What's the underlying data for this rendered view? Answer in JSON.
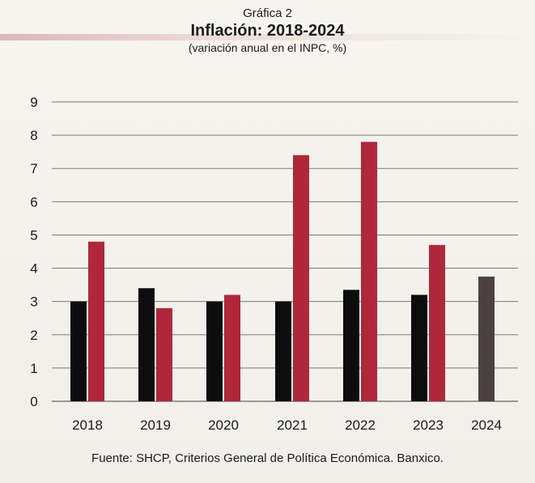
{
  "kicker": "Gráfica 2",
  "source": "Fuente: SHCP, Criterios General de Política Económica. Banxico.",
  "colors": {
    "series1": "#0d0d0d",
    "series2": "#b0273b",
    "series3": "#4b4141",
    "grid": "#7a7a7a",
    "text": "#1b1b1b"
  },
  "chart_data": {
    "type": "bar",
    "title": "Inflación: 2018-2024",
    "subtitle": "(variación anual en el INPC, %)",
    "xlabel": "",
    "ylabel": "",
    "ylim": [
      0,
      9
    ],
    "yticks": [
      0,
      1,
      2,
      3,
      4,
      5,
      6,
      7,
      8,
      9
    ],
    "grid": true,
    "categories": [
      "2018",
      "2019",
      "2020",
      "2021",
      "2022",
      "2023",
      "2024"
    ],
    "series": [
      {
        "values": [
          3.0,
          3.4,
          3.0,
          3.0,
          3.35,
          3.2,
          null
        ]
      },
      {
        "values": [
          4.8,
          2.8,
          3.2,
          7.4,
          7.8,
          4.7,
          null
        ]
      },
      {
        "values": [
          null,
          null,
          null,
          null,
          null,
          null,
          3.75
        ]
      }
    ]
  }
}
